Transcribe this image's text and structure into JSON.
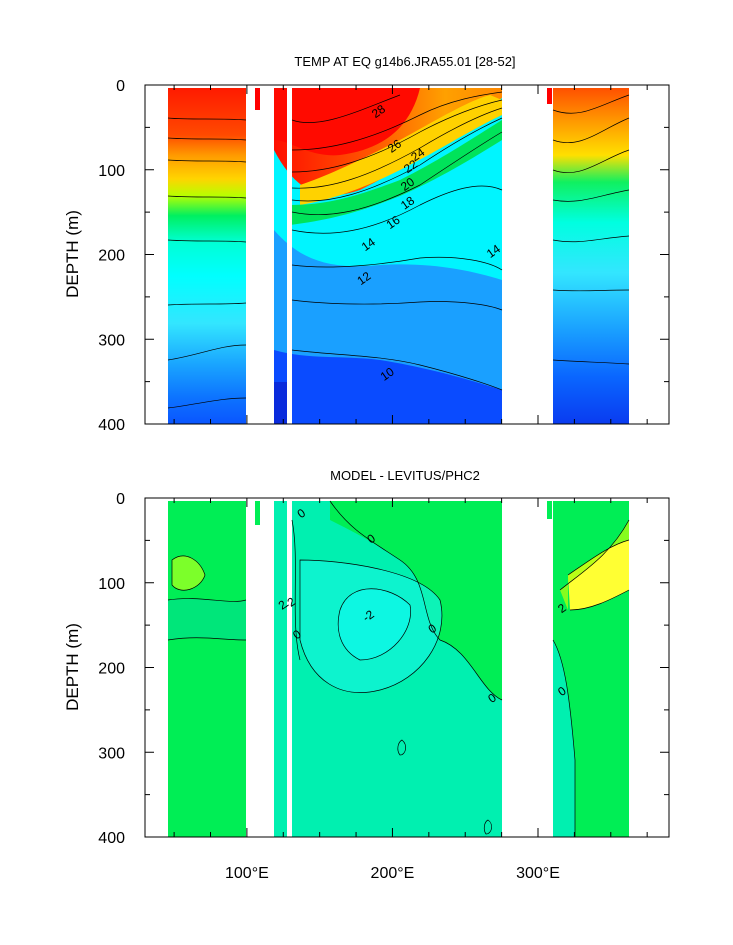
{
  "chart_data": [
    {
      "type": "heatmap",
      "title": "TEMP AT EQ g14b6.JRA55.01 [28-52]",
      "ylabel": "DEPTH (m)",
      "xlabel": "",
      "xlim": [
        30,
        390
      ],
      "ylim": [
        0,
        400
      ],
      "y_ticks": [
        0,
        100,
        200,
        300,
        400
      ],
      "x_ticks": [
        100,
        200,
        300
      ],
      "x_tick_labels": [
        "100°E",
        "200°E",
        "300°E"
      ],
      "contour_labels": [
        {
          "text": "28",
          "lon": 192,
          "depth": 35
        },
        {
          "text": "26",
          "lon": 203,
          "depth": 76
        },
        {
          "text": "24",
          "lon": 219,
          "depth": 86
        },
        {
          "text": "22",
          "lon": 214,
          "depth": 100
        },
        {
          "text": "20",
          "lon": 212,
          "depth": 121
        },
        {
          "text": "18",
          "lon": 212,
          "depth": 143
        },
        {
          "text": "16",
          "lon": 202,
          "depth": 166
        },
        {
          "text": "14",
          "lon": 185,
          "depth": 192
        },
        {
          "text": "14",
          "lon": 271,
          "depth": 200
        },
        {
          "text": "12",
          "lon": 182,
          "depth": 232
        },
        {
          "text": "10",
          "lon": 198,
          "depth": 345
        }
      ],
      "colors": {
        "warm": "#ff0000",
        "cool": "#0033ff",
        "mask": "#ffffff"
      }
    },
    {
      "type": "heatmap",
      "title": "MODEL - LEVITUS/PHC2",
      "ylabel": "DEPTH (m)",
      "xlabel": "",
      "xlim": [
        30,
        390
      ],
      "ylim": [
        0,
        400
      ],
      "y_ticks": [
        0,
        100,
        200,
        300,
        400
      ],
      "x_ticks": [
        100,
        200,
        300
      ],
      "x_tick_labels": [
        "100°E",
        "200°E",
        "300°E"
      ],
      "contour_labels": [
        {
          "text": "0",
          "lon": 139,
          "depth": 22
        },
        {
          "text": "0",
          "lon": 187,
          "depth": 52
        },
        {
          "text": "2",
          "lon": 126,
          "depth": 130
        },
        {
          "text": "-2",
          "lon": 131,
          "depth": 128
        },
        {
          "text": "0",
          "lon": 136,
          "depth": 165
        },
        {
          "text": "-2",
          "lon": 185,
          "depth": 143
        },
        {
          "text": "0",
          "lon": 229,
          "depth": 158
        },
        {
          "text": "0",
          "lon": 270,
          "depth": 240
        },
        {
          "text": "2",
          "lon": 318,
          "depth": 134
        },
        {
          "text": "0",
          "lon": 318,
          "depth": 232
        }
      ],
      "colors": {
        "positive": "#ffff00",
        "zero": "#00ff66",
        "negative": "#00ffff"
      }
    }
  ]
}
